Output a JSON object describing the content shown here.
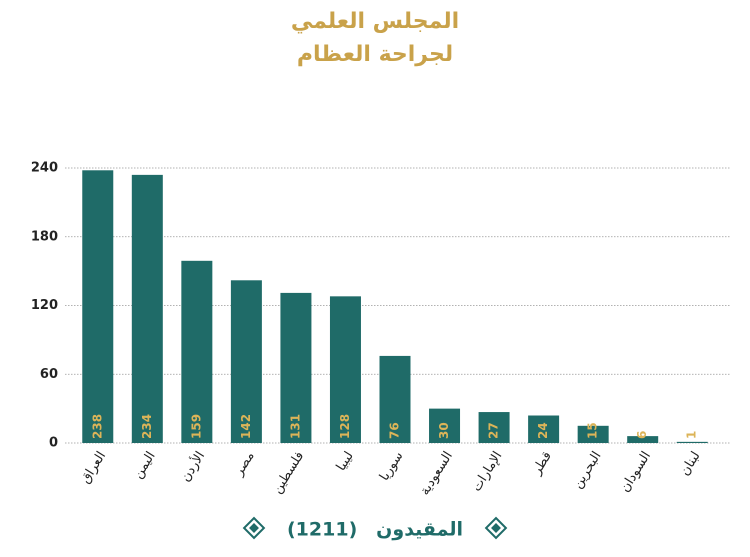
{
  "chart_data": {
    "type": "bar",
    "title": "المجلس العلمي",
    "subtitle": "لجراحة العظام",
    "categories": [
      "العراق",
      "اليمن",
      "الأردن",
      "مصر",
      "فلسطين",
      "ليبيا",
      "سوريا",
      "السعودية",
      "الإمارات",
      "قطر",
      "البحرين",
      "السودان",
      "لبنان"
    ],
    "series": [
      {
        "name": "المقيدون",
        "color": "#1f6b68",
        "values": [
          238,
          234,
          159,
          142,
          131,
          128,
          76,
          30,
          27,
          24,
          15,
          6,
          1
        ]
      }
    ],
    "legend_note": "(1211)",
    "ylim": [
      0,
      240
    ],
    "yticks": [
      0,
      60,
      120,
      180,
      240
    ],
    "grid": true
  }
}
